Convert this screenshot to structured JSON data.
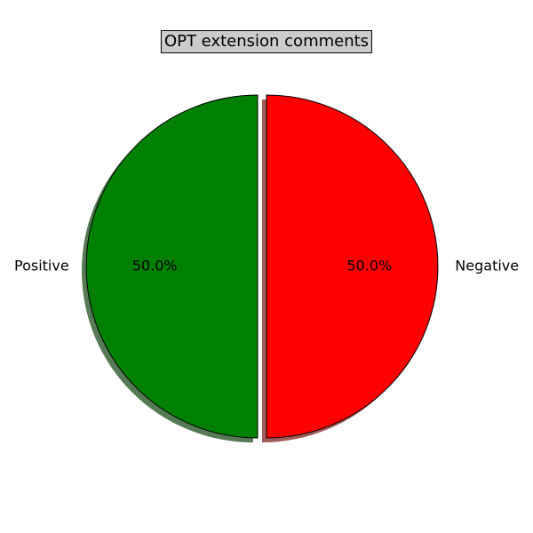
{
  "chart_data": {
    "type": "pie",
    "title": "OPT extension comments",
    "slices": [
      {
        "label": "Positive",
        "value": 50.0,
        "pct_label": "50.0%",
        "color": "#008000",
        "shadow_color": "#567a56"
      },
      {
        "label": "Negative",
        "value": 50.0,
        "pct_label": "50.0%",
        "color": "#ff0000",
        "shadow_color": "#a35c5c"
      }
    ],
    "exploded": true,
    "shadow": true,
    "start_angle": "90° (top), counter-clockwise"
  }
}
